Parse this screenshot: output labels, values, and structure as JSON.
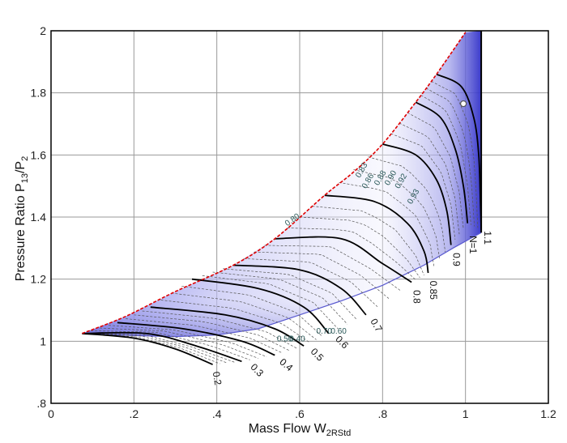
{
  "chart_data": {
    "type": "line",
    "title": "",
    "xlabel": "Mass Flow W",
    "xlabel_sub": "2RStd",
    "ylabel": "Pressure Ratio P",
    "ylabel_sub1": "13",
    "ylabel_mid": "/P",
    "ylabel_sub2": "2",
    "xlim": [
      0,
      1.2
    ],
    "ylim": [
      0.8,
      2.0
    ],
    "grid": true,
    "x_ticks": [
      {
        "v": 0,
        "label": "0"
      },
      {
        "v": 0.2,
        "label": ".2"
      },
      {
        "v": 0.4,
        "label": ".4"
      },
      {
        "v": 0.6,
        "label": ".6"
      },
      {
        "v": 0.8,
        "label": ".8"
      },
      {
        "v": 1.0,
        "label": "1"
      },
      {
        "v": 1.2,
        "label": "1.2"
      }
    ],
    "y_ticks": [
      {
        "v": 0.8,
        "label": ".8"
      },
      {
        "v": 1.0,
        "label": "1"
      },
      {
        "v": 1.2,
        "label": "1.2"
      },
      {
        "v": 1.4,
        "label": "1.4"
      },
      {
        "v": 1.6,
        "label": "1.6"
      },
      {
        "v": 1.8,
        "label": "1.8"
      },
      {
        "v": 2.0,
        "label": "2"
      }
    ],
    "surge_line": {
      "color": "#e00000",
      "points": [
        [
          0.075,
          1.025
        ],
        [
          0.18,
          1.08
        ],
        [
          0.3,
          1.16
        ],
        [
          0.44,
          1.245
        ],
        [
          0.54,
          1.33
        ],
        [
          0.66,
          1.47
        ],
        [
          0.73,
          1.545
        ],
        [
          0.8,
          1.635
        ],
        [
          0.88,
          1.77
        ],
        [
          0.93,
          1.86
        ],
        [
          1.0,
          1.995
        ]
      ]
    },
    "choke_edge": [
      [
        1.038,
        1.35
      ],
      [
        1.038,
        2.0
      ]
    ],
    "bottom_boundary": [
      [
        0.075,
        1.025
      ],
      [
        0.2,
        1.018
      ],
      [
        0.3,
        1.015
      ],
      [
        0.4,
        1.02
      ],
      [
        0.5,
        1.04
      ],
      [
        0.6,
        1.085
      ],
      [
        0.7,
        1.13
      ],
      [
        0.8,
        1.18
      ],
      [
        0.9,
        1.245
      ],
      [
        0.97,
        1.3
      ],
      [
        1.038,
        1.35
      ]
    ],
    "speed_lines": [
      {
        "name": "0.2",
        "points": [
          [
            0.075,
            1.025
          ],
          [
            0.2,
            1.01
          ],
          [
            0.3,
            0.975
          ],
          [
            0.39,
            0.925
          ]
        ]
      },
      {
        "name": "0.3",
        "points": [
          [
            0.075,
            1.025
          ],
          [
            0.23,
            1.025
          ],
          [
            0.35,
            0.985
          ],
          [
            0.46,
            0.935
          ]
        ]
      },
      {
        "name": "0.4",
        "points": [
          [
            0.16,
            1.06
          ],
          [
            0.32,
            1.04
          ],
          [
            0.46,
            1.0
          ],
          [
            0.54,
            0.955
          ]
        ]
      },
      {
        "name": "0.5",
        "points": [
          [
            0.24,
            1.11
          ],
          [
            0.42,
            1.085
          ],
          [
            0.54,
            1.04
          ],
          [
            0.61,
            0.985
          ]
        ]
      },
      {
        "name": "0.6",
        "points": [
          [
            0.34,
            1.2
          ],
          [
            0.5,
            1.17
          ],
          [
            0.61,
            1.11
          ],
          [
            0.67,
            1.025
          ]
        ]
      },
      {
        "name": "0.7",
        "points": [
          [
            0.44,
            1.245
          ],
          [
            0.6,
            1.23
          ],
          [
            0.7,
            1.17
          ],
          [
            0.76,
            1.085
          ]
        ]
      },
      {
        "name": "0.8",
        "points": [
          [
            0.54,
            1.33
          ],
          [
            0.7,
            1.33
          ],
          [
            0.8,
            1.25
          ],
          [
            0.87,
            1.19
          ]
        ]
      },
      {
        "name": "0.85",
        "points": [
          [
            0.66,
            1.47
          ],
          [
            0.78,
            1.45
          ],
          [
            0.86,
            1.38
          ],
          [
            0.9,
            1.29
          ],
          [
            0.91,
            1.22
          ]
        ]
      },
      {
        "name": "0.9",
        "points": [
          [
            0.8,
            1.635
          ],
          [
            0.88,
            1.6
          ],
          [
            0.93,
            1.52
          ],
          [
            0.955,
            1.42
          ],
          [
            0.965,
            1.31
          ]
        ]
      },
      {
        "name": "N=1",
        "points": [
          [
            0.88,
            1.77
          ],
          [
            0.94,
            1.72
          ],
          [
            0.975,
            1.62
          ],
          [
            0.995,
            1.5
          ],
          [
            1.005,
            1.38
          ]
        ]
      },
      {
        "name": "1.1",
        "points": [
          [
            0.93,
            1.86
          ],
          [
            0.99,
            1.82
          ],
          [
            1.02,
            1.72
          ],
          [
            1.032,
            1.6
          ],
          [
            1.036,
            1.45
          ],
          [
            1.038,
            1.36
          ]
        ]
      }
    ],
    "speed_label_positions": [
      {
        "text": "0.2",
        "x": 0.39,
        "y": 0.9,
        "rot": 80
      },
      {
        "text": "0.3",
        "x": 0.48,
        "y": 0.915,
        "rot": 45
      },
      {
        "text": "0.4",
        "x": 0.55,
        "y": 0.93,
        "rot": 40
      },
      {
        "text": "0.5",
        "x": 0.625,
        "y": 0.965,
        "rot": 45
      },
      {
        "text": "0.6",
        "x": 0.685,
        "y": 1.005,
        "rot": 45
      },
      {
        "text": "0.7",
        "x": 0.77,
        "y": 1.065,
        "rot": 60
      },
      {
        "text": "0.8",
        "x": 0.875,
        "y": 1.165,
        "rot": 90
      },
      {
        "text": "0.85",
        "x": 0.915,
        "y": 1.195,
        "rot": 90
      },
      {
        "text": "0.9",
        "x": 0.97,
        "y": 1.285,
        "rot": 90
      },
      {
        "text": "N=1",
        "x": 1.01,
        "y": 1.34,
        "rot": 90
      },
      {
        "text": "1.1",
        "x": 1.045,
        "y": 1.355,
        "rot": 90
      }
    ],
    "efficiency_labels": [
      {
        "text": "0.80",
        "x": 0.57,
        "y": 1.37,
        "rot": -35
      },
      {
        "text": "0.83",
        "x": 0.745,
        "y": 1.525,
        "rot": -60
      },
      {
        "text": "0.86",
        "x": 0.76,
        "y": 1.49,
        "rot": -60
      },
      {
        "text": "0.88",
        "x": 0.79,
        "y": 1.5,
        "rot": -60
      },
      {
        "text": "0.90",
        "x": 0.815,
        "y": 1.5,
        "rot": -60
      },
      {
        "text": "0.92",
        "x": 0.84,
        "y": 1.49,
        "rot": -60
      },
      {
        "text": "0.93",
        "x": 0.87,
        "y": 1.44,
        "rot": -60
      },
      {
        "text": "0.50",
        "x": 0.545,
        "y": 1.0,
        "rot": 0
      },
      {
        "text": "0.40",
        "x": 0.575,
        "y": 1.0,
        "rot": 0
      },
      {
        "text": "0.70",
        "x": 0.64,
        "y": 1.025,
        "rot": 0
      },
      {
        "text": "0.60",
        "x": 0.675,
        "y": 1.025,
        "rot": 0
      }
    ],
    "operating_point": {
      "x": 0.995,
      "y": 1.765
    }
  }
}
